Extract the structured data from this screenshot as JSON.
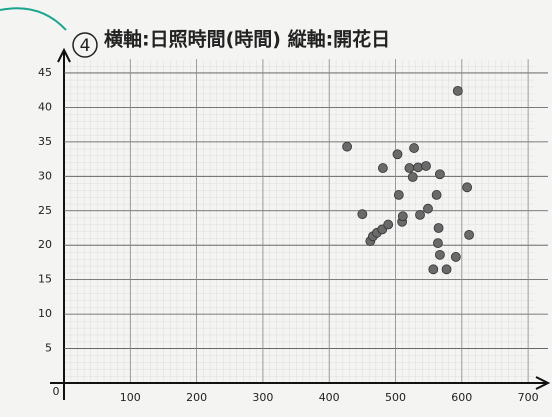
{
  "chart_data": {
    "type": "scatter",
    "title": "横軸:日照時間(時間)  縦軸:開花日",
    "annotation": "4",
    "origin_label": "0",
    "color": "#6a6a6a",
    "xlim": [
      0,
      730
    ],
    "ylim": [
      0,
      47
    ],
    "xticks": [
      100,
      200,
      300,
      400,
      500,
      600,
      700
    ],
    "yticks": [
      5,
      10,
      15,
      20,
      25,
      30,
      35,
      40,
      45
    ],
    "grid": true,
    "x": [
      427,
      450,
      462,
      466,
      472,
      480,
      481,
      489,
      503,
      505,
      510,
      511,
      521,
      526,
      528,
      534,
      537,
      546,
      549,
      557,
      562,
      565,
      567,
      564,
      567,
      577,
      594,
      591,
      608,
      611
    ],
    "values": [
      34.3,
      24.5,
      20.6,
      21.3,
      21.8,
      22.3,
      31.2,
      23,
      33.2,
      27.3,
      23.4,
      24.2,
      31.2,
      29.9,
      34.1,
      31.3,
      24.4,
      31.5,
      25.3,
      16.5,
      27.3,
      22.5,
      30.3,
      20.3,
      18.6,
      16.5,
      42.4,
      18.3,
      28.4,
      21.5
    ]
  }
}
